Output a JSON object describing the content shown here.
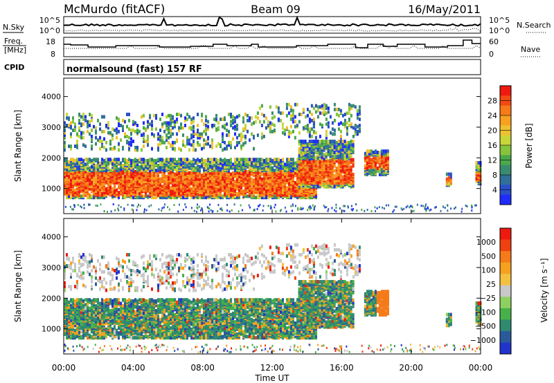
{
  "header": {
    "station": "McMurdo (fitACF)",
    "beam": "Beam 09",
    "date": "16/May/2011"
  },
  "sky_panel": {
    "left_label": "N.Sky",
    "right_label": "N.Search",
    "tick_top": "10^5",
    "tick_bottom": "10^0",
    "right_tick_top": "10^5",
    "right_tick_bottom": "10^0"
  },
  "freq_panel": {
    "left_label_line1": "Freq.",
    "left_label_line2": "[MHz]",
    "tick_top": "18",
    "tick_bottom": "8",
    "right_label": "Nave",
    "right_tick_top": "60",
    "right_tick_bottom": "0"
  },
  "cpid_panel": {
    "label": "CPID",
    "text": "normalsound (fast) 157 RF"
  },
  "chart_data": [
    {
      "type": "heatmap",
      "name": "power",
      "ylabel": "Slant Range [km]",
      "xlabel": "Time UT",
      "x_ticks": [
        "00:00",
        "04:00",
        "08:00",
        "12:00",
        "16:00",
        "20:00",
        "00:00"
      ],
      "x_range_hours": [
        0,
        24
      ],
      "ylim": [
        180,
        4600
      ],
      "y_ticks": [
        "1000",
        "2000",
        "3000",
        "4000"
      ],
      "y_tick_values": [
        1000,
        2000,
        3000,
        4000
      ],
      "colorbar": {
        "label": "Power [dB]",
        "range": [
          0,
          32
        ],
        "ticks": [
          "4",
          "8",
          "12",
          "16",
          "20",
          "24",
          "28"
        ],
        "tick_values": [
          4,
          8,
          12,
          16,
          20,
          24,
          28
        ],
        "colors": [
          "#1f2bff",
          "#2a4fc8",
          "#2f6f9a",
          "#3a8c6e",
          "#4aa84a",
          "#86c43c",
          "#c8d63a",
          "#f0c030",
          "#f8a020",
          "#f77a18",
          "#f24a12",
          "#ee1a10"
        ]
      }
    },
    {
      "type": "heatmap",
      "name": "velocity",
      "ylabel": "Slant Range [km]",
      "xlabel": "Time UT",
      "x_ticks": [
        "00:00",
        "04:00",
        "08:00",
        "12:00",
        "16:00",
        "20:00",
        "00:00"
      ],
      "x_range_hours": [
        0,
        24
      ],
      "ylim": [
        180,
        4600
      ],
      "y_ticks": [
        "1000",
        "2000",
        "3000",
        "4000"
      ],
      "y_tick_values": [
        1000,
        2000,
        3000,
        4000
      ],
      "colorbar": {
        "label": "Velocity [m s⁻¹]",
        "ticks": [
          "1000",
          "500",
          "100",
          "25",
          "−25",
          "−100",
          "−500",
          "−1000"
        ],
        "colors": [
          "#2233cc",
          "#2a5a9a",
          "#2f8a70",
          "#48b048",
          "#8ed060",
          "#c8c8c8",
          "#f4c040",
          "#f7a020",
          "#f57a18",
          "#f04010",
          "#ee1a10"
        ]
      }
    }
  ]
}
